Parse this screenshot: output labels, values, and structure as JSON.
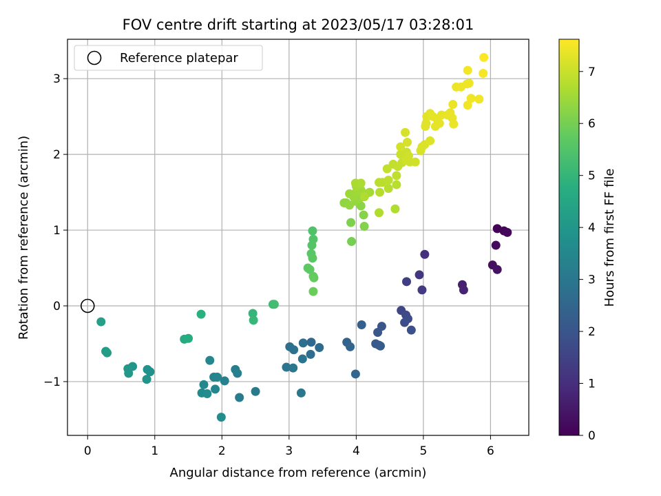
{
  "chart_data": {
    "type": "scatter",
    "title": "FOV centre drift starting at 2023/05/17 03:28:01",
    "xlabel": "Angular distance from reference (arcmin)",
    "ylabel": "Rotation from reference (arcmin)",
    "xlim": [
      -0.3,
      6.57
    ],
    "ylim": [
      -1.71,
      3.52
    ],
    "xticks": [
      "0",
      "1",
      "2",
      "3",
      "4",
      "5",
      "6"
    ],
    "yticks": [
      "−1",
      "0",
      "1",
      "2",
      "3"
    ],
    "grid": true,
    "legend": {
      "position": "top-left",
      "entries": [
        "Reference platepar"
      ]
    },
    "reference_point": {
      "x": 0,
      "y": 0
    },
    "colorbar": {
      "label": "Hours from first FF file",
      "range": [
        0,
        7.62
      ],
      "ticks": [
        "0",
        "1",
        "2",
        "3",
        "4",
        "5",
        "6",
        "7"
      ],
      "colormap": "viridis"
    },
    "points": [
      {
        "x": 6.1,
        "y": 1.02,
        "t": 0.05
      },
      {
        "x": 6.2,
        "y": 0.99,
        "t": 0.1
      },
      {
        "x": 6.25,
        "y": 0.97,
        "t": 0.15
      },
      {
        "x": 6.08,
        "y": 0.8,
        "t": 0.2
      },
      {
        "x": 6.03,
        "y": 0.54,
        "t": 0.3
      },
      {
        "x": 6.1,
        "y": 0.48,
        "t": 0.35
      },
      {
        "x": 5.58,
        "y": 0.28,
        "t": 0.7
      },
      {
        "x": 5.6,
        "y": 0.21,
        "t": 0.75
      },
      {
        "x": 5.02,
        "y": 0.68,
        "t": 1.05
      },
      {
        "x": 4.94,
        "y": 0.41,
        "t": 1.2
      },
      {
        "x": 4.98,
        "y": 0.21,
        "t": 1.3
      },
      {
        "x": 4.75,
        "y": 0.32,
        "t": 1.4
      },
      {
        "x": 4.67,
        "y": -0.06,
        "t": 1.6
      },
      {
        "x": 4.74,
        "y": -0.12,
        "t": 1.7
      },
      {
        "x": 4.77,
        "y": -0.17,
        "t": 1.75
      },
      {
        "x": 4.72,
        "y": -0.22,
        "t": 1.8
      },
      {
        "x": 4.82,
        "y": -0.32,
        "t": 1.85
      },
      {
        "x": 4.38,
        "y": -0.27,
        "t": 2.0
      },
      {
        "x": 4.32,
        "y": -0.35,
        "t": 2.05
      },
      {
        "x": 4.29,
        "y": -0.5,
        "t": 2.1
      },
      {
        "x": 4.34,
        "y": -0.52,
        "t": 2.15
      },
      {
        "x": 4.36,
        "y": -0.53,
        "t": 2.2
      },
      {
        "x": 4.08,
        "y": -0.25,
        "t": 2.3
      },
      {
        "x": 3.86,
        "y": -0.48,
        "t": 2.4
      },
      {
        "x": 3.91,
        "y": -0.54,
        "t": 2.45
      },
      {
        "x": 3.99,
        "y": -0.9,
        "t": 2.5
      },
      {
        "x": 3.33,
        "y": -0.48,
        "t": 2.6
      },
      {
        "x": 3.45,
        "y": -0.55,
        "t": 2.65
      },
      {
        "x": 3.32,
        "y": -0.64,
        "t": 2.7
      },
      {
        "x": 3.21,
        "y": -0.49,
        "t": 2.75
      },
      {
        "x": 3.01,
        "y": -0.54,
        "t": 2.8
      },
      {
        "x": 3.07,
        "y": -0.58,
        "t": 2.85
      },
      {
        "x": 3.2,
        "y": -0.7,
        "t": 2.9
      },
      {
        "x": 2.96,
        "y": -0.81,
        "t": 2.95
      },
      {
        "x": 3.06,
        "y": -0.82,
        "t": 3.0
      },
      {
        "x": 3.18,
        "y": -1.15,
        "t": 3.05
      },
      {
        "x": 2.5,
        "y": -1.13,
        "t": 3.1
      },
      {
        "x": 2.26,
        "y": -1.21,
        "t": 3.15
      },
      {
        "x": 2.2,
        "y": -0.84,
        "t": 3.2
      },
      {
        "x": 2.23,
        "y": -0.89,
        "t": 3.25
      },
      {
        "x": 2.04,
        "y": -0.99,
        "t": 3.3
      },
      {
        "x": 1.88,
        "y": -0.94,
        "t": 3.35
      },
      {
        "x": 1.93,
        "y": -0.94,
        "t": 3.4
      },
      {
        "x": 1.9,
        "y": -1.1,
        "t": 3.45
      },
      {
        "x": 1.82,
        "y": -0.72,
        "t": 3.5
      },
      {
        "x": 1.73,
        "y": -1.04,
        "t": 3.55
      },
      {
        "x": 1.7,
        "y": -1.15,
        "t": 3.6
      },
      {
        "x": 1.78,
        "y": -1.16,
        "t": 3.65
      },
      {
        "x": 1.99,
        "y": -1.47,
        "t": 3.7
      },
      {
        "x": 0.89,
        "y": -0.84,
        "t": 3.8
      },
      {
        "x": 0.93,
        "y": -0.87,
        "t": 3.85
      },
      {
        "x": 0.88,
        "y": -0.97,
        "t": 3.9
      },
      {
        "x": 0.67,
        "y": -0.8,
        "t": 3.95
      },
      {
        "x": 0.6,
        "y": -0.83,
        "t": 4.0
      },
      {
        "x": 0.61,
        "y": -0.89,
        "t": 4.05
      },
      {
        "x": 0.27,
        "y": -0.6,
        "t": 4.15
      },
      {
        "x": 0.29,
        "y": -0.62,
        "t": 4.2
      },
      {
        "x": 0.2,
        "y": -0.21,
        "t": 4.3
      },
      {
        "x": 1.44,
        "y": -0.44,
        "t": 4.6
      },
      {
        "x": 1.5,
        "y": -0.43,
        "t": 4.65
      },
      {
        "x": 1.69,
        "y": -0.11,
        "t": 4.8
      },
      {
        "x": 2.46,
        "y": -0.1,
        "t": 5.0
      },
      {
        "x": 2.47,
        "y": -0.19,
        "t": 5.05
      },
      {
        "x": 2.76,
        "y": 0.02,
        "t": 5.2
      },
      {
        "x": 2.78,
        "y": 0.02,
        "t": 5.25
      },
      {
        "x": 3.35,
        "y": 0.99,
        "t": 5.45
      },
      {
        "x": 3.36,
        "y": 0.88,
        "t": 5.5
      },
      {
        "x": 3.34,
        "y": 0.8,
        "t": 5.55
      },
      {
        "x": 3.33,
        "y": 0.69,
        "t": 5.6
      },
      {
        "x": 3.35,
        "y": 0.63,
        "t": 5.65
      },
      {
        "x": 3.28,
        "y": 0.5,
        "t": 5.7
      },
      {
        "x": 3.31,
        "y": 0.48,
        "t": 5.72
      },
      {
        "x": 3.36,
        "y": 0.39,
        "t": 5.75
      },
      {
        "x": 3.37,
        "y": 0.37,
        "t": 5.8
      },
      {
        "x": 3.36,
        "y": 0.19,
        "t": 5.85
      },
      {
        "x": 3.93,
        "y": 0.85,
        "t": 6.0
      },
      {
        "x": 3.92,
        "y": 1.1,
        "t": 6.1
      },
      {
        "x": 4.12,
        "y": 1.05,
        "t": 6.15
      },
      {
        "x": 4.11,
        "y": 1.2,
        "t": 6.2
      },
      {
        "x": 4.07,
        "y": 1.32,
        "t": 6.25
      },
      {
        "x": 3.85,
        "y": 1.36,
        "t": 6.3
      },
      {
        "x": 3.82,
        "y": 1.36,
        "t": 6.32
      },
      {
        "x": 3.9,
        "y": 1.33,
        "t": 6.35
      },
      {
        "x": 3.99,
        "y": 1.38,
        "t": 6.4
      },
      {
        "x": 4.05,
        "y": 1.42,
        "t": 6.42
      },
      {
        "x": 3.96,
        "y": 1.44,
        "t": 6.45
      },
      {
        "x": 3.9,
        "y": 1.48,
        "t": 6.48
      },
      {
        "x": 4.0,
        "y": 1.5,
        "t": 6.5
      },
      {
        "x": 4.07,
        "y": 1.53,
        "t": 6.52
      },
      {
        "x": 4.15,
        "y": 1.48,
        "t": 6.55
      },
      {
        "x": 4.2,
        "y": 1.5,
        "t": 6.57
      },
      {
        "x": 4.0,
        "y": 1.58,
        "t": 6.6
      },
      {
        "x": 3.99,
        "y": 1.62,
        "t": 6.62
      },
      {
        "x": 4.07,
        "y": 1.62,
        "t": 6.65
      },
      {
        "x": 4.12,
        "y": 1.44,
        "t": 6.68
      },
      {
        "x": 4.34,
        "y": 1.23,
        "t": 6.7
      },
      {
        "x": 4.58,
        "y": 1.28,
        "t": 6.72
      },
      {
        "x": 4.35,
        "y": 1.5,
        "t": 6.75
      },
      {
        "x": 4.48,
        "y": 1.55,
        "t": 6.78
      },
      {
        "x": 4.6,
        "y": 1.6,
        "t": 6.8
      },
      {
        "x": 4.34,
        "y": 1.63,
        "t": 6.82
      },
      {
        "x": 4.39,
        "y": 1.63,
        "t": 6.84
      },
      {
        "x": 4.48,
        "y": 1.66,
        "t": 6.86
      },
      {
        "x": 4.6,
        "y": 1.72,
        "t": 6.88
      },
      {
        "x": 4.46,
        "y": 1.81,
        "t": 6.9
      },
      {
        "x": 4.55,
        "y": 1.87,
        "t": 6.92
      },
      {
        "x": 4.62,
        "y": 1.84,
        "t": 6.94
      },
      {
        "x": 4.68,
        "y": 1.89,
        "t": 6.96
      },
      {
        "x": 4.72,
        "y": 1.95,
        "t": 6.98
      },
      {
        "x": 4.66,
        "y": 2.0,
        "t": 7.0
      },
      {
        "x": 4.75,
        "y": 2.03,
        "t": 7.02
      },
      {
        "x": 4.8,
        "y": 1.9,
        "t": 7.04
      },
      {
        "x": 4.74,
        "y": 1.92,
        "t": 7.06
      },
      {
        "x": 4.78,
        "y": 1.98,
        "t": 7.08
      },
      {
        "x": 4.88,
        "y": 1.9,
        "t": 7.1
      },
      {
        "x": 4.66,
        "y": 2.1,
        "t": 7.12
      },
      {
        "x": 4.76,
        "y": 2.16,
        "t": 7.14
      },
      {
        "x": 4.73,
        "y": 2.29,
        "t": 7.16
      },
      {
        "x": 4.96,
        "y": 2.05,
        "t": 7.18
      },
      {
        "x": 4.98,
        "y": 2.1,
        "t": 7.2
      },
      {
        "x": 5.02,
        "y": 2.13,
        "t": 7.22
      },
      {
        "x": 5.1,
        "y": 2.18,
        "t": 7.24
      },
      {
        "x": 5.03,
        "y": 2.37,
        "t": 7.26
      },
      {
        "x": 5.04,
        "y": 2.41,
        "t": 7.28
      },
      {
        "x": 5.05,
        "y": 2.5,
        "t": 7.3
      },
      {
        "x": 5.1,
        "y": 2.54,
        "t": 7.31
      },
      {
        "x": 5.14,
        "y": 2.5,
        "t": 7.32
      },
      {
        "x": 5.18,
        "y": 2.37,
        "t": 7.33
      },
      {
        "x": 5.2,
        "y": 2.47,
        "t": 7.34
      },
      {
        "x": 5.24,
        "y": 2.41,
        "t": 7.35
      },
      {
        "x": 5.27,
        "y": 2.52,
        "t": 7.36
      },
      {
        "x": 5.36,
        "y": 2.52,
        "t": 7.37
      },
      {
        "x": 5.4,
        "y": 2.55,
        "t": 7.38
      },
      {
        "x": 5.43,
        "y": 2.48,
        "t": 7.39
      },
      {
        "x": 5.44,
        "y": 2.66,
        "t": 7.4
      },
      {
        "x": 5.45,
        "y": 2.4,
        "t": 7.41
      },
      {
        "x": 5.49,
        "y": 2.89,
        "t": 7.42
      },
      {
        "x": 5.56,
        "y": 2.89,
        "t": 7.43
      },
      {
        "x": 5.65,
        "y": 2.93,
        "t": 7.44
      },
      {
        "x": 5.68,
        "y": 2.94,
        "t": 7.45
      },
      {
        "x": 5.66,
        "y": 2.65,
        "t": 7.46
      },
      {
        "x": 5.71,
        "y": 2.74,
        "t": 7.47
      },
      {
        "x": 5.83,
        "y": 2.73,
        "t": 7.48
      },
      {
        "x": 5.66,
        "y": 3.11,
        "t": 7.5
      },
      {
        "x": 5.89,
        "y": 3.07,
        "t": 7.55
      },
      {
        "x": 5.9,
        "y": 3.28,
        "t": 7.6
      }
    ]
  }
}
